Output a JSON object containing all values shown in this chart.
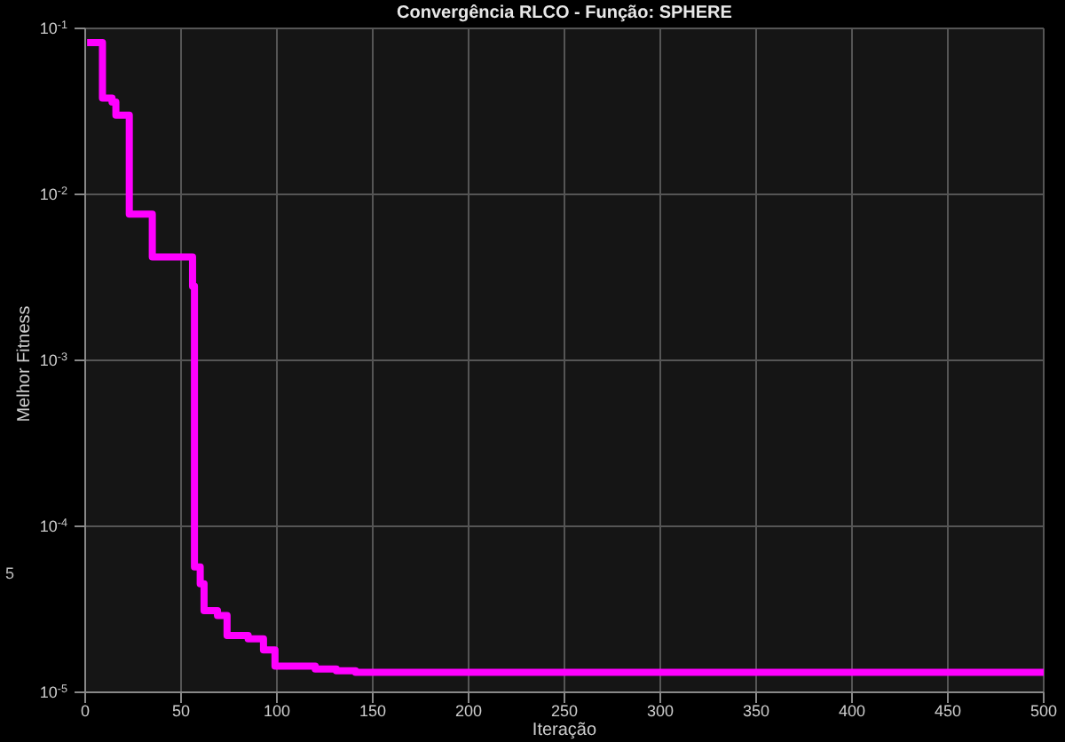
{
  "chart_data": {
    "type": "step",
    "title": "Convergência RLCO - Função: SPHERE",
    "xlabel": "Iteração",
    "ylabel": "Melhor Fitness",
    "annotations": [
      "5"
    ],
    "log": "y",
    "grid": true,
    "marker": "none",
    "line_style": "solid",
    "x": [
      1,
      9,
      14,
      16,
      23,
      35,
      56,
      57,
      60,
      62,
      69,
      74,
      85,
      93,
      99,
      120,
      131,
      141,
      500
    ],
    "series": [
      {
        "color": "#ff00ff",
        "values": [
          0.082,
          0.038,
          0.036,
          0.03,
          0.0076,
          0.0042,
          0.0028,
          5.7e-05,
          4.5e-05,
          3.1e-05,
          2.9e-05,
          2.2e-05,
          2.1e-05,
          1.8e-05,
          1.44e-05,
          1.38e-05,
          1.35e-05,
          1.32e-05,
          1.32e-05
        ]
      }
    ],
    "xlim": [
      0,
      500
    ],
    "xticks": [
      0,
      50,
      100,
      150,
      200,
      250,
      300,
      350,
      400,
      450,
      500
    ],
    "ylim": [
      1e-05,
      0.1
    ],
    "yticks": [
      {
        "value": 1e-05,
        "label": "10$^{-5}$"
      },
      {
        "value": 0.0001,
        "label": "10$^{-4}$"
      },
      {
        "value": 0.001,
        "label": "10$^{-3}$"
      },
      {
        "value": 0.01,
        "label": "10$^{-2}$"
      },
      {
        "value": 0.1,
        "label": "10$^{-1}$"
      }
    ]
  }
}
